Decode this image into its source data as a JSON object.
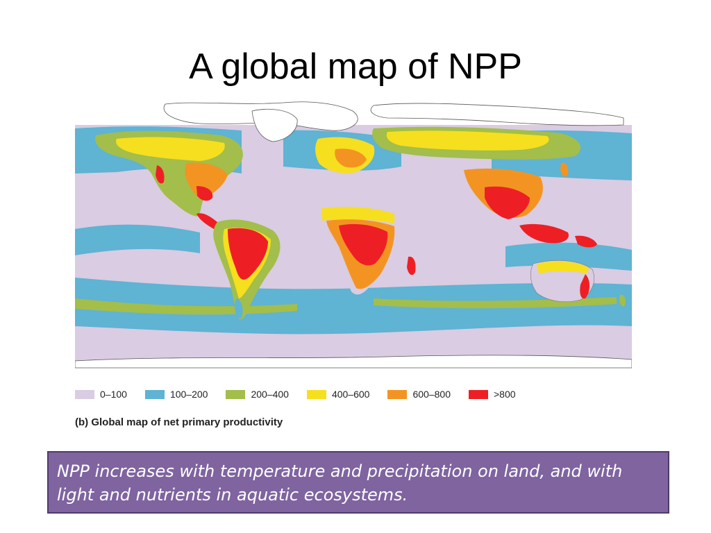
{
  "slide": {
    "title": "A global map of NPP"
  },
  "map": {
    "legend": [
      {
        "label": "0–100",
        "color": "#d9cce3"
      },
      {
        "label": "100–200",
        "color": "#5fb3d3"
      },
      {
        "label": "200–400",
        "color": "#a3be4a"
      },
      {
        "label": "400–600",
        "color": "#f6df1e"
      },
      {
        "label": "600–800",
        "color": "#f39422"
      },
      {
        "label": ">800",
        "color": "#ee1f24"
      }
    ],
    "caption": "(b) Global map of net primary productivity",
    "ocean_color": "#d9cce3",
    "coastal_ocean_color": "#5fb3d3",
    "polar_land_color": "#ffffff"
  },
  "note": {
    "text": "NPP increases with temperature and precipitation on land, and with light and nutrients in aquatic ecosystems."
  }
}
